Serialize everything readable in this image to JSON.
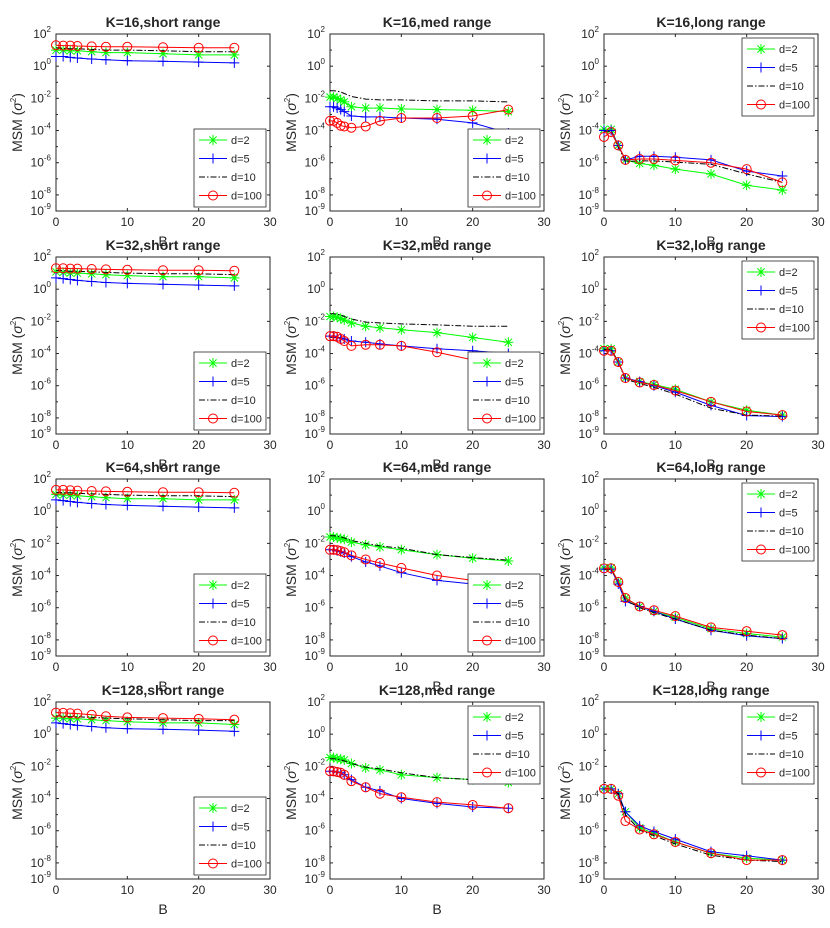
{
  "figure": {
    "xlabel": "B",
    "ylabel": "MSM",
    "ylabel_unit": "σ",
    "ylabel_unit_exp": "2",
    "x_ticks": [
      0,
      10,
      20,
      30
    ],
    "xlim": [
      0,
      30
    ],
    "y_ticks": [
      {
        "value": -9,
        "base": "10",
        "exp": "-9"
      },
      {
        "value": -8,
        "base": "10",
        "exp": "-8"
      },
      {
        "value": -6,
        "base": "10",
        "exp": "-6"
      },
      {
        "value": -4,
        "base": "10",
        "exp": "-4"
      },
      {
        "value": -2,
        "base": "10",
        "exp": "-2"
      },
      {
        "value": 0,
        "base": "10",
        "exp": "0"
      },
      {
        "value": 2,
        "base": "10",
        "exp": "2"
      }
    ],
    "ylim_log10": [
      -9,
      2
    ]
  },
  "series_style": [
    {
      "name": "d=2",
      "color": "#00ff00",
      "dash": "",
      "marker": "star"
    },
    {
      "name": "d=5",
      "color": "#0000ff",
      "dash": "",
      "marker": "plus"
    },
    {
      "name": "d=10",
      "color": "#000000",
      "dash": "6,2,1.5,2",
      "marker": "none"
    },
    {
      "name": "d=100",
      "color": "#ff0000",
      "dash": "",
      "marker": "circle"
    }
  ],
  "chart_data": [
    {
      "type": "line",
      "title": "K=16,short range",
      "xlabel": "B",
      "ylabel": "MSM (σ^2)",
      "y_scale": "log",
      "ylim": [
        1e-09,
        100
      ],
      "xlim": [
        0,
        30
      ],
      "legend": "lower-right",
      "x": [
        0,
        1,
        2,
        3,
        5,
        7,
        10,
        15,
        20,
        25
      ],
      "series": [
        {
          "name": "d=2",
          "values": [
            10,
            10,
            9,
            9,
            8,
            7,
            7,
            6,
            5,
            5
          ]
        },
        {
          "name": "d=5",
          "values": [
            4,
            4,
            3.5,
            3.2,
            2.8,
            2.5,
            2.2,
            2,
            1.8,
            1.6
          ]
        },
        {
          "name": "d=10",
          "values": [
            14,
            13,
            12,
            12,
            11,
            10,
            10,
            9,
            8,
            8
          ]
        },
        {
          "name": "d=100",
          "values": [
            20,
            19,
            19,
            18,
            17,
            16,
            16,
            15,
            14,
            14
          ]
        }
      ]
    },
    {
      "type": "line",
      "title": "K=16,med range",
      "xlabel": "B",
      "ylabel": "MSM (σ^2)",
      "y_scale": "log",
      "ylim": [
        1e-09,
        100
      ],
      "xlim": [
        0,
        30
      ],
      "legend": "lower-right",
      "x": [
        0,
        0.5,
        1,
        1.5,
        2,
        3,
        5,
        7,
        10,
        15,
        20,
        25
      ],
      "series": [
        {
          "name": "d=2",
          "values": [
            0.012,
            0.012,
            0.01,
            0.008,
            0.006,
            0.003,
            0.0025,
            0.0025,
            0.0022,
            0.002,
            0.0018,
            0.0015
          ]
        },
        {
          "name": "d=5",
          "values": [
            0.003,
            0.003,
            0.0025,
            0.002,
            0.0015,
            0.0008,
            0.0007,
            0.0007,
            0.0006,
            0.0005,
            0.0003,
            7e-05
          ]
        },
        {
          "name": "d=10",
          "values": [
            0.03,
            0.03,
            0.028,
            0.025,
            0.02,
            0.013,
            0.009,
            0.008,
            0.008,
            0.007,
            0.007,
            0.006
          ]
        },
        {
          "name": "d=100",
          "values": [
            0.0004,
            0.0004,
            0.0003,
            0.0002,
            0.00018,
            0.00015,
            0.00018,
            0.0004,
            0.0006,
            0.0006,
            0.0008,
            0.002
          ]
        }
      ]
    },
    {
      "type": "line",
      "title": "K=16,long range",
      "xlabel": "B",
      "ylabel": "MSM (σ^2)",
      "y_scale": "log",
      "ylim": [
        1e-09,
        100
      ],
      "xlim": [
        0,
        30
      ],
      "legend": "upper-right",
      "x": [
        0,
        1,
        2,
        3,
        5,
        7,
        10,
        15,
        20,
        25
      ],
      "series": [
        {
          "name": "d=2",
          "values": [
            0.00012,
            0.00012,
            1.2e-05,
            1.5e-06,
            9e-07,
            7e-07,
            4e-07,
            2e-07,
            4e-08,
            2e-08
          ]
        },
        {
          "name": "d=5",
          "values": [
            0.0001,
            0.0001,
            1.2e-05,
            1.5e-06,
            2.5e-06,
            2.5e-06,
            2.2e-06,
            1.5e-06,
            3e-07,
            1.5e-07
          ]
        },
        {
          "name": "d=10",
          "values": [
            9e-05,
            9e-05,
            1e-05,
            1.2e-06,
            1.3e-06,
            1.3e-06,
            1.1e-06,
            8e-07,
            2e-07,
            6e-08
          ]
        },
        {
          "name": "d=100",
          "values": [
            4e-05,
            8e-05,
            1.2e-05,
            1.5e-06,
            1.7e-06,
            1.7e-06,
            1.4e-06,
            1e-06,
            4e-07,
            6e-08
          ]
        }
      ]
    },
    {
      "type": "line",
      "title": "K=32,short range",
      "xlabel": "B",
      "ylabel": "MSM (σ^2)",
      "y_scale": "log",
      "ylim": [
        1e-09,
        100
      ],
      "xlim": [
        0,
        30
      ],
      "legend": "lower-right",
      "x": [
        0,
        1,
        2,
        3,
        5,
        7,
        10,
        15,
        20,
        25
      ],
      "series": [
        {
          "name": "d=2",
          "values": [
            12,
            11,
            10,
            10,
            9,
            8,
            7,
            6,
            6,
            5
          ]
        },
        {
          "name": "d=5",
          "values": [
            5,
            4.5,
            4,
            3.5,
            3,
            2.6,
            2.3,
            2,
            1.8,
            1.6
          ]
        },
        {
          "name": "d=10",
          "values": [
            15,
            14,
            13,
            13,
            12,
            11,
            10,
            9,
            9,
            8
          ]
        },
        {
          "name": "d=100",
          "values": [
            20,
            20,
            19,
            19,
            18,
            17,
            16,
            15,
            15,
            14
          ]
        }
      ]
    },
    {
      "type": "line",
      "title": "K=32,med range",
      "xlabel": "B",
      "ylabel": "MSM (σ^2)",
      "y_scale": "log",
      "ylim": [
        1e-09,
        100
      ],
      "xlim": [
        0,
        30
      ],
      "legend": "lower-right",
      "x": [
        0,
        0.5,
        1,
        1.5,
        2,
        3,
        5,
        7,
        10,
        15,
        20,
        25
      ],
      "series": [
        {
          "name": "d=2",
          "values": [
            0.02,
            0.02,
            0.018,
            0.015,
            0.012,
            0.008,
            0.005,
            0.004,
            0.003,
            0.002,
            0.001,
            0.0005
          ]
        },
        {
          "name": "d=5",
          "values": [
            0.0012,
            0.0012,
            0.001,
            0.0009,
            0.0008,
            0.0006,
            0.0005,
            0.0004,
            0.0003,
            0.0002,
            0.00015,
            0.0001
          ]
        },
        {
          "name": "d=10",
          "values": [
            0.03,
            0.03,
            0.028,
            0.025,
            0.02,
            0.014,
            0.009,
            0.008,
            0.007,
            0.006,
            0.005,
            0.005
          ]
        },
        {
          "name": "d=100",
          "values": [
            0.0012,
            0.0012,
            0.0011,
            0.0008,
            0.0006,
            0.0003,
            0.00035,
            0.00035,
            0.0003,
            0.00012,
            4e-05,
            3e-05
          ]
        }
      ]
    },
    {
      "type": "line",
      "title": "K=32,long range",
      "xlabel": "B",
      "ylabel": "MSM (σ^2)",
      "y_scale": "log",
      "ylim": [
        1e-09,
        100
      ],
      "xlim": [
        0,
        30
      ],
      "legend": "upper-right",
      "x": [
        0,
        1,
        2,
        3,
        5,
        7,
        10,
        15,
        20,
        25
      ],
      "series": [
        {
          "name": "d=2",
          "values": [
            0.0002,
            0.0002,
            3e-05,
            3e-06,
            1.8e-06,
            1.2e-06,
            6e-07,
            1e-07,
            3e-08,
            1.5e-08
          ]
        },
        {
          "name": "d=5",
          "values": [
            0.00015,
            0.00015,
            3e-05,
            3e-06,
            1.8e-06,
            1e-06,
            4e-07,
            6e-08,
            1.4e-08,
            1.2e-08
          ]
        },
        {
          "name": "d=10",
          "values": [
            0.00018,
            0.00018,
            3e-05,
            2.5e-06,
            1.4e-06,
            8e-07,
            3e-07,
            4e-08,
            1.5e-08,
            1.3e-08
          ]
        },
        {
          "name": "d=100",
          "values": [
            0.00015,
            0.00015,
            3e-05,
            3e-06,
            1.6e-06,
            1.1e-06,
            5e-07,
            1e-07,
            2.5e-08,
            1.5e-08
          ]
        }
      ]
    },
    {
      "type": "line",
      "title": "K=64,short range",
      "xlabel": "B",
      "ylabel": "MSM (σ^2)",
      "y_scale": "log",
      "ylim": [
        1e-09,
        100
      ],
      "xlim": [
        0,
        30
      ],
      "legend": "lower-right",
      "x": [
        0,
        1,
        2,
        3,
        5,
        7,
        10,
        15,
        20,
        25
      ],
      "series": [
        {
          "name": "d=2",
          "values": [
            11,
            10,
            10,
            9,
            8,
            7,
            6,
            6,
            5,
            5
          ]
        },
        {
          "name": "d=5",
          "values": [
            5,
            4.5,
            4,
            3.5,
            3,
            2.6,
            2.3,
            2,
            1.8,
            1.6
          ]
        },
        {
          "name": "d=10",
          "values": [
            15,
            14,
            14,
            13,
            12,
            11,
            10,
            9,
            9,
            8
          ]
        },
        {
          "name": "d=100",
          "values": [
            21,
            21,
            20,
            19,
            18,
            17,
            16,
            15,
            15,
            14
          ]
        }
      ]
    },
    {
      "type": "line",
      "title": "K=64,med range",
      "xlabel": "B",
      "ylabel": "MSM (σ^2)",
      "y_scale": "log",
      "ylim": [
        1e-09,
        100
      ],
      "xlim": [
        0,
        30
      ],
      "legend": "lower-right",
      "x": [
        0,
        0.5,
        1,
        1.5,
        2,
        3,
        5,
        7,
        10,
        15,
        20,
        25
      ],
      "series": [
        {
          "name": "d=2",
          "values": [
            0.025,
            0.025,
            0.022,
            0.02,
            0.018,
            0.012,
            0.008,
            0.006,
            0.004,
            0.002,
            0.0012,
            0.0008
          ]
        },
        {
          "name": "d=5",
          "values": [
            0.004,
            0.004,
            0.0035,
            0.003,
            0.0025,
            0.0015,
            0.0007,
            0.0004,
            0.00015,
            5e-05,
            3e-05,
            2e-05
          ]
        },
        {
          "name": "d=10",
          "values": [
            0.03,
            0.03,
            0.028,
            0.025,
            0.022,
            0.015,
            0.01,
            0.007,
            0.005,
            0.002,
            0.0013,
            0.0009
          ]
        },
        {
          "name": "d=100",
          "values": [
            0.004,
            0.004,
            0.0038,
            0.0033,
            0.0028,
            0.0018,
            0.001,
            0.0006,
            0.0003,
            0.0001,
            5e-05,
            4e-05
          ]
        }
      ]
    },
    {
      "type": "line",
      "title": "K=64,long range",
      "xlabel": "B",
      "ylabel": "MSM (σ^2)",
      "y_scale": "log",
      "ylim": [
        1e-09,
        100
      ],
      "xlim": [
        0,
        30
      ],
      "legend": "upper-right",
      "x": [
        0,
        1,
        2,
        3,
        5,
        7,
        10,
        15,
        20,
        25
      ],
      "series": [
        {
          "name": "d=2",
          "values": [
            0.0003,
            0.0003,
            4e-05,
            4e-06,
            1.2e-06,
            6e-07,
            2.5e-07,
            5e-08,
            2.5e-08,
            1.5e-08
          ]
        },
        {
          "name": "d=5",
          "values": [
            0.00025,
            0.00025,
            3e-05,
            2.5e-06,
            1.2e-06,
            6e-07,
            2e-07,
            4e-08,
            1.8e-08,
            1.2e-08
          ]
        },
        {
          "name": "d=10",
          "values": [
            0.00025,
            0.00025,
            4e-05,
            3e-06,
            1e-06,
            5e-07,
            2e-07,
            4e-08,
            2e-08,
            1.2e-08
          ]
        },
        {
          "name": "d=100",
          "values": [
            0.00028,
            0.00028,
            4e-05,
            4e-06,
            1.2e-06,
            7e-07,
            3e-07,
            6e-08,
            3.5e-08,
            2e-08
          ]
        }
      ]
    },
    {
      "type": "line",
      "title": "K=128,short range",
      "xlabel": "B",
      "ylabel": "MSM (σ^2)",
      "y_scale": "log",
      "ylim": [
        1e-09,
        100
      ],
      "xlim": [
        0,
        30
      ],
      "legend": "lower-right",
      "x": [
        0,
        1,
        2,
        3,
        5,
        7,
        10,
        15,
        20,
        25
      ],
      "series": [
        {
          "name": "d=2",
          "values": [
            10,
            10,
            9,
            9,
            8,
            7,
            6,
            5,
            5,
            4
          ]
        },
        {
          "name": "d=5",
          "values": [
            5,
            4.5,
            4,
            3.5,
            3,
            2.5,
            2.2,
            2,
            1.8,
            1.5
          ]
        },
        {
          "name": "d=10",
          "values": [
            14,
            13,
            12,
            12,
            11,
            10,
            9,
            8,
            7,
            7
          ]
        },
        {
          "name": "d=100",
          "values": [
            22,
            21,
            20,
            19,
            16,
            13,
            11,
            10,
            9,
            8
          ]
        }
      ]
    },
    {
      "type": "line",
      "title": "K=128,med range",
      "xlabel": "B",
      "ylabel": "MSM (σ^2)",
      "y_scale": "log",
      "ylim": [
        1e-09,
        100
      ],
      "xlim": [
        0,
        30
      ],
      "legend": "upper-right",
      "x": [
        0,
        0.5,
        1,
        1.5,
        2,
        3,
        5,
        7,
        10,
        15,
        20,
        25
      ],
      "series": [
        {
          "name": "d=2",
          "values": [
            0.035,
            0.035,
            0.03,
            0.028,
            0.025,
            0.015,
            0.008,
            0.006,
            0.003,
            0.002,
            0.0015,
            0.001
          ]
        },
        {
          "name": "d=5",
          "values": [
            0.005,
            0.005,
            0.0045,
            0.004,
            0.003,
            0.0015,
            0.0005,
            0.0003,
            0.0001,
            5e-05,
            3e-05,
            2.5e-05
          ]
        },
        {
          "name": "d=10",
          "values": [
            0.03,
            0.03,
            0.027,
            0.025,
            0.022,
            0.015,
            0.009,
            0.007,
            0.004,
            0.002,
            0.0015,
            0.0012
          ]
        },
        {
          "name": "d=100",
          "values": [
            0.005,
            0.005,
            0.0045,
            0.004,
            0.003,
            0.0012,
            0.0005,
            0.0002,
            0.00012,
            6e-05,
            4e-05,
            2.5e-05
          ]
        }
      ]
    },
    {
      "type": "line",
      "title": "K=128,long range",
      "xlabel": "B",
      "ylabel": "MSM (σ^2)",
      "y_scale": "log",
      "ylim": [
        1e-09,
        100
      ],
      "xlim": [
        0,
        30
      ],
      "legend": "upper-right",
      "x": [
        0,
        1,
        2,
        3,
        5,
        7,
        10,
        15,
        20,
        25
      ],
      "series": [
        {
          "name": "d=2",
          "values": [
            0.0004,
            0.0004,
            0.0002,
            1.5e-05,
            1.5e-06,
            7e-07,
            2e-07,
            4e-08,
            2e-08,
            1.5e-08
          ]
        },
        {
          "name": "d=5",
          "values": [
            0.0004,
            0.0004,
            0.0002,
            1.5e-05,
            2e-06,
            9e-07,
            3e-07,
            5e-08,
            2.8e-08,
            1.5e-08
          ]
        },
        {
          "name": "d=10",
          "values": [
            0.0004,
            0.0004,
            0.0002,
            1e-05,
            1.1e-06,
            5e-07,
            1.5e-07,
            3e-08,
            1.5e-08,
            1.2e-08
          ]
        },
        {
          "name": "d=100",
          "values": [
            0.0004,
            0.0004,
            0.00015,
            4e-06,
            1.2e-06,
            6e-07,
            2e-07,
            4e-08,
            1.5e-08,
            1.5e-08
          ]
        }
      ]
    }
  ]
}
